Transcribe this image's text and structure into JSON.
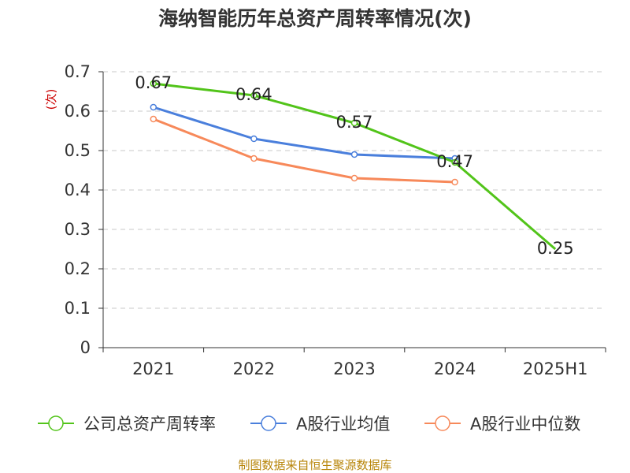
{
  "chart_data": {
    "type": "line",
    "title": "海纳智能历年总资产周转率情况(次)",
    "ylabel": "(次)",
    "categories": [
      "2021",
      "2022",
      "2023",
      "2024",
      "2025H1"
    ],
    "ylim": [
      0,
      0.7
    ],
    "yticks": [
      "0",
      "0.1",
      "0.2",
      "0.3",
      "0.4",
      "0.5",
      "0.6",
      "0.7"
    ],
    "grid": true,
    "legend_position": "bottom",
    "series": [
      {
        "name": "公司总资产周转率",
        "color": "#52c41a",
        "values": [
          0.67,
          0.64,
          0.57,
          0.47,
          0.25
        ],
        "labels": [
          "0.67",
          "0.64",
          "0.57",
          "0.47",
          "0.25"
        ]
      },
      {
        "name": "A股行业均值",
        "color": "#4a7fdc",
        "values": [
          0.61,
          0.53,
          0.49,
          0.48,
          null
        ]
      },
      {
        "name": "A股行业中位数",
        "color": "#f7895a",
        "values": [
          0.58,
          0.48,
          0.43,
          0.42,
          null
        ]
      }
    ],
    "source": "制图数据来自恒生聚源数据库"
  }
}
